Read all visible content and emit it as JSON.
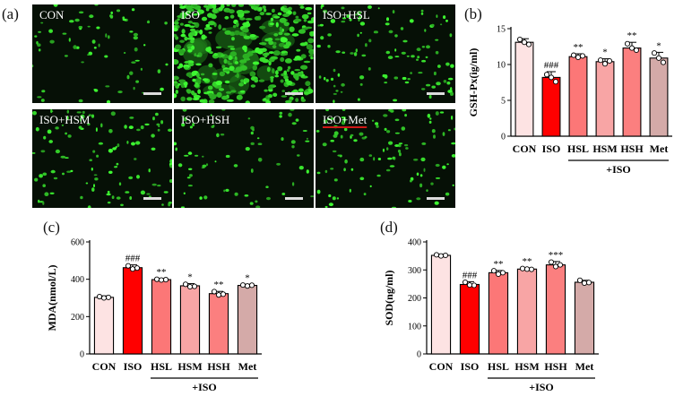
{
  "figure": {
    "panel_labels": [
      "(a)",
      "(b)",
      "(c)",
      "(d)"
    ],
    "micrographs": [
      {
        "label": "CON",
        "density": "low"
      },
      {
        "label": "ISO",
        "density": "very-high"
      },
      {
        "label": "ISO+HSL",
        "density": "medium"
      },
      {
        "label": "ISO+HSM",
        "density": "medium"
      },
      {
        "label": "ISO+HSH",
        "density": "low"
      },
      {
        "label": "ISO+Met",
        "density": "medium"
      }
    ]
  },
  "chart_data": [
    {
      "panel": "(b)",
      "type": "bar",
      "categories": [
        "CON",
        "ISO",
        "HSL",
        "HSM",
        "HSH",
        "Met"
      ],
      "group_label": "+ISO",
      "ylabel": "GSH-Px(ìg/ml)",
      "ylim": [
        0,
        15
      ],
      "yticks": [
        0,
        5,
        10,
        15
      ],
      "values": [
        13.1,
        8.2,
        11.1,
        10.4,
        12.3,
        10.9
      ],
      "errors": [
        0.5,
        0.8,
        0.4,
        0.4,
        0.8,
        0.8
      ],
      "points": [
        [
          13.5,
          13.1,
          12.8
        ],
        [
          8.6,
          8.2,
          7.6
        ],
        [
          11.3,
          11.0,
          11.2
        ],
        [
          10.6,
          10.1,
          10.5
        ],
        [
          12.9,
          12.3,
          12.0
        ],
        [
          11.6,
          10.9,
          10.3
        ]
      ],
      "significance": [
        "",
        "###",
        "**",
        "*",
        "**",
        "*"
      ],
      "colors": [
        "#fde3e3",
        "#ff0000",
        "#fc7777",
        "#f8a5a5",
        "#fb7f7f",
        "#d4aaa8"
      ]
    },
    {
      "panel": "(c)",
      "type": "bar",
      "categories": [
        "CON",
        "ISO",
        "HSL",
        "HSM",
        "HSH",
        "Met"
      ],
      "group_label": "+ISO",
      "ylabel": "MDA(nmol/L)",
      "ylim": [
        0,
        600
      ],
      "yticks": [
        0,
        200,
        400,
        600
      ],
      "values": [
        303,
        462,
        398,
        365,
        323,
        367
      ],
      "errors": [
        8,
        15,
        6,
        12,
        12,
        6
      ],
      "points": [
        [
          307,
          300,
          303
        ],
        [
          472,
          455,
          460
        ],
        [
          400,
          396,
          398
        ],
        [
          373,
          360,
          362
        ],
        [
          334,
          316,
          320
        ],
        [
          369,
          364,
          368
        ]
      ],
      "significance": [
        "",
        "###",
        "**",
        "*",
        "**",
        "*"
      ],
      "colors": [
        "#fde3e3",
        "#ff0000",
        "#fc7777",
        "#f8a5a5",
        "#fb7f7f",
        "#d4aaa8"
      ]
    },
    {
      "panel": "(d)",
      "type": "bar",
      "categories": [
        "CON",
        "ISO",
        "HSL",
        "HSM",
        "HSH",
        "Met"
      ],
      "group_label": "+ISO",
      "ylabel": "SOD(ng/ml)",
      "ylim": [
        0,
        400
      ],
      "yticks": [
        0,
        100,
        200,
        300,
        400
      ],
      "values": [
        352,
        248,
        290,
        303,
        318,
        256
      ],
      "errors": [
        4,
        10,
        8,
        4,
        12,
        7
      ],
      "points": [
        [
          354,
          350,
          352
        ],
        [
          256,
          246,
          245
        ],
        [
          297,
          285,
          290
        ],
        [
          305,
          303,
          302
        ],
        [
          328,
          312,
          318
        ],
        [
          263,
          253,
          255
        ]
      ],
      "significance": [
        "",
        "###",
        "**",
        "**",
        "***",
        ""
      ],
      "colors": [
        "#fde3e3",
        "#ff0000",
        "#fc7777",
        "#f8a5a5",
        "#fb7f7f",
        "#d4aaa8"
      ]
    }
  ]
}
